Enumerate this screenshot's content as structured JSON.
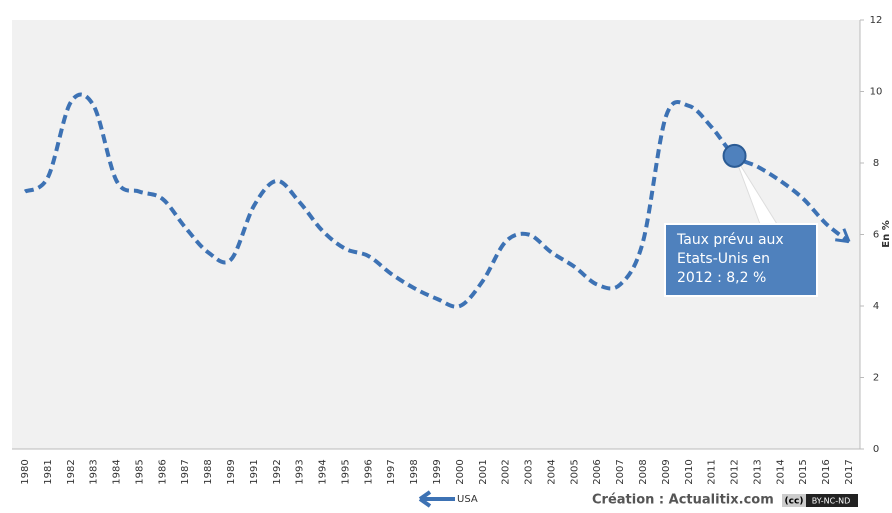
{
  "chart_data": {
    "type": "line",
    "categories": [
      "1980",
      "1981",
      "1982",
      "1983",
      "1984",
      "1985",
      "1986",
      "1987",
      "1988",
      "1989",
      "1991",
      "1992",
      "1993",
      "1994",
      "1995",
      "1996",
      "1997",
      "1998",
      "1999",
      "2000",
      "2001",
      "2002",
      "2003",
      "2004",
      "2005",
      "2006",
      "2007",
      "2008",
      "2009",
      "2010",
      "2011",
      "2012",
      "2013",
      "2014",
      "2015",
      "2016",
      "2017"
    ],
    "series": [
      {
        "name": "USA",
        "color": "#3d72b4",
        "values": [
          7.2,
          7.6,
          9.7,
          9.6,
          7.5,
          7.2,
          7.0,
          6.2,
          5.5,
          5.3,
          6.8,
          7.5,
          6.9,
          6.1,
          5.6,
          5.4,
          4.9,
          4.5,
          4.2,
          4.0,
          4.7,
          5.8,
          6.0,
          5.5,
          5.1,
          4.6,
          4.6,
          5.8,
          9.3,
          9.6,
          9.0,
          8.2,
          7.9,
          7.5,
          7.0,
          6.3,
          5.8
        ]
      }
    ],
    "ylim": [
      0,
      12
    ],
    "yticks": [
      0,
      2,
      4,
      6,
      8,
      10,
      12
    ],
    "y_label": "En %",
    "annotation": {
      "index": 31,
      "lines": [
        "Taux prévu aux",
        "Etats-Unis en",
        "2012 : 8,2 %"
      ]
    },
    "credit": "Création : Actualitix.com",
    "license_cc": "(cc)",
    "license": "BY-NC-ND"
  }
}
